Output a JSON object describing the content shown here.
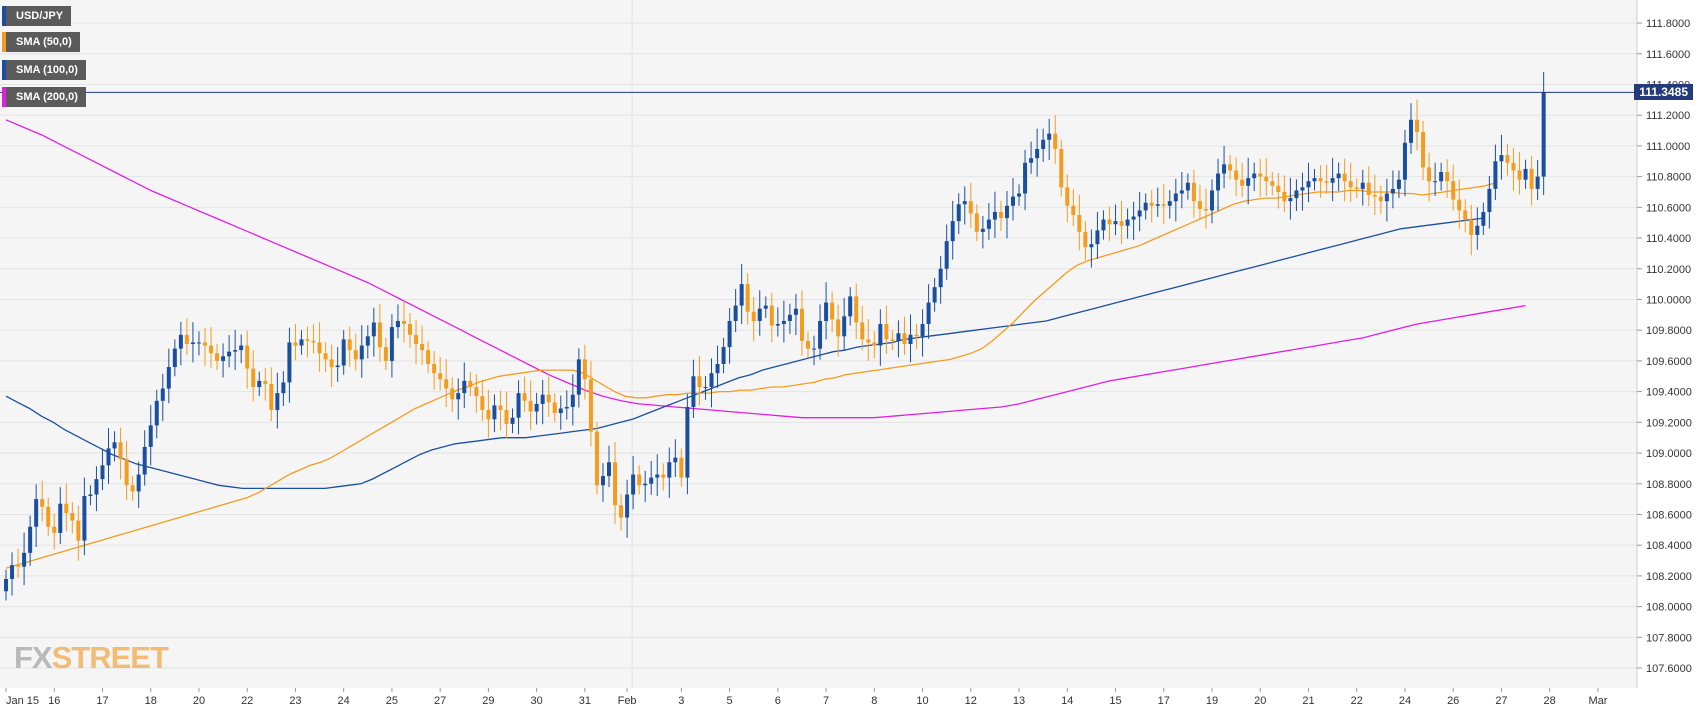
{
  "chart_data": {
    "type": "candlestick",
    "instrument": "USD/JPY",
    "legend": [
      {
        "label": "USD/JPY",
        "color": "#1a4fa0"
      },
      {
        "label": "SMA (50,0)",
        "color": "#f39c1f"
      },
      {
        "label": "SMA (100,0)",
        "color": "#1a4fa0"
      },
      {
        "label": "SMA (200,0)",
        "color": "#e020e0"
      }
    ],
    "current_price": "111.3485",
    "current_price_value": 111.3485,
    "y_ticks": [
      "111.8000",
      "111.6000",
      "111.4000",
      "111.2000",
      "111.0000",
      "110.8000",
      "110.6000",
      "110.4000",
      "110.2000",
      "110.0000",
      "109.8000",
      "109.6000",
      "109.4000",
      "109.2000",
      "109.0000",
      "108.8000",
      "108.6000",
      "108.4000",
      "108.2000",
      "108.0000",
      "107.8000",
      "107.6000"
    ],
    "y_tick_values": [
      111.8,
      111.6,
      111.4,
      111.2,
      111.0,
      110.8,
      110.6,
      110.4,
      110.2,
      110.0,
      109.8,
      109.6,
      109.4,
      109.2,
      109.0,
      108.8,
      108.6,
      108.4,
      108.2,
      108.0,
      107.8,
      107.6
    ],
    "ylim": [
      107.47,
      111.95
    ],
    "x_labels": [
      {
        "text": "Jan 15",
        "i": 0
      },
      {
        "text": "16",
        "i": 8
      },
      {
        "text": "17",
        "i": 16
      },
      {
        "text": "18",
        "i": 24
      },
      {
        "text": "20",
        "i": 32
      },
      {
        "text": "22",
        "i": 40
      },
      {
        "text": "23",
        "i": 48
      },
      {
        "text": "24",
        "i": 56
      },
      {
        "text": "25",
        "i": 64
      },
      {
        "text": "27",
        "i": 72
      },
      {
        "text": "29",
        "i": 80
      },
      {
        "text": "30",
        "i": 88
      },
      {
        "text": "31",
        "i": 96
      },
      {
        "text": "Feb",
        "i": 103
      },
      {
        "text": "3",
        "i": 112
      },
      {
        "text": "5",
        "i": 120
      },
      {
        "text": "6",
        "i": 128
      },
      {
        "text": "7",
        "i": 136
      },
      {
        "text": "8",
        "i": 144
      },
      {
        "text": "10",
        "i": 152
      },
      {
        "text": "12",
        "i": 160
      },
      {
        "text": "13",
        "i": 168
      },
      {
        "text": "14",
        "i": 176
      },
      {
        "text": "15",
        "i": 184
      },
      {
        "text": "17",
        "i": 192
      },
      {
        "text": "19",
        "i": 200
      },
      {
        "text": "20",
        "i": 208
      },
      {
        "text": "21",
        "i": 216
      },
      {
        "text": "22",
        "i": 224
      },
      {
        "text": "24",
        "i": 232
      },
      {
        "text": "26",
        "i": 240
      },
      {
        "text": "27",
        "i": 248
      },
      {
        "text": "28",
        "i": 256
      },
      {
        "text": "Mar",
        "i": 264
      }
    ],
    "candles_close": [
      108.18,
      108.27,
      108.26,
      108.35,
      108.52,
      108.7,
      108.65,
      108.52,
      108.48,
      108.67,
      108.61,
      108.56,
      108.43,
      108.72,
      108.73,
      108.83,
      108.92,
      109.03,
      109.07,
      108.96,
      108.79,
      108.75,
      108.86,
      109.04,
      109.18,
      109.34,
      109.42,
      109.56,
      109.68,
      109.77,
      109.71,
      109.72,
      109.72,
      109.7,
      109.65,
      109.6,
      109.63,
      109.66,
      109.67,
      109.7,
      109.55,
      109.43,
      109.47,
      109.45,
      109.28,
      109.39,
      109.46,
      109.72,
      109.7,
      109.74,
      109.73,
      109.72,
      109.65,
      109.61,
      109.56,
      109.57,
      109.74,
      109.67,
      109.61,
      109.7,
      109.76,
      109.85,
      109.69,
      109.6,
      109.82,
      109.86,
      109.84,
      109.77,
      109.71,
      109.67,
      109.58,
      109.52,
      109.48,
      109.42,
      109.35,
      109.39,
      109.47,
      109.43,
      109.37,
      109.28,
      109.22,
      109.31,
      109.28,
      109.19,
      109.23,
      109.39,
      109.34,
      109.27,
      109.32,
      109.38,
      109.33,
      109.26,
      109.29,
      109.3,
      109.38,
      109.61,
      109.48,
      109.14,
      108.79,
      108.85,
      108.94,
      108.66,
      108.58,
      108.73,
      108.86,
      108.79,
      108.8,
      108.84,
      108.86,
      108.84,
      108.94,
      108.97,
      108.84,
      109.3,
      109.5,
      109.43,
      109.43,
      109.52,
      109.58,
      109.69,
      109.86,
      109.96,
      110.1,
      109.92,
      109.86,
      109.94,
      109.96,
      109.83,
      109.84,
      109.86,
      109.9,
      109.94,
      109.73,
      109.68,
      109.68,
      109.86,
      109.98,
      109.87,
      109.76,
      109.89,
      110.02,
      109.85,
      109.74,
      109.72,
      109.7,
      109.84,
      109.74,
      109.73,
      109.78,
      109.71,
      109.77,
      109.76,
      109.84,
      109.98,
      110.08,
      110.2,
      110.38,
      110.51,
      110.62,
      110.64,
      110.56,
      110.44,
      110.46,
      110.52,
      110.57,
      110.53,
      110.61,
      110.67,
      110.69,
      110.89,
      110.92,
      110.98,
      111.04,
      111.08,
      110.98,
      110.73,
      110.61,
      110.55,
      110.44,
      110.34,
      110.36,
      110.45,
      110.52,
      110.49,
      110.51,
      110.48,
      110.52,
      110.54,
      110.58,
      110.63,
      110.61,
      110.62,
      110.61,
      110.64,
      110.69,
      110.71,
      110.76,
      110.64,
      110.59,
      110.58,
      110.71,
      110.82,
      110.88,
      110.84,
      110.78,
      110.74,
      110.79,
      110.82,
      110.8,
      110.77,
      110.74,
      110.7,
      110.64,
      110.66,
      110.71,
      110.73,
      110.77,
      110.79,
      110.77,
      110.76,
      110.79,
      110.82,
      110.77,
      110.73,
      110.72,
      110.76,
      110.68,
      110.67,
      110.64,
      110.69,
      110.72,
      110.78,
      111.02,
      111.17,
      111.09,
      110.86,
      110.77,
      110.77,
      110.83,
      110.77,
      110.65,
      110.58,
      110.52,
      110.42,
      110.48,
      110.57,
      110.72,
      110.9,
      110.94,
      110.89,
      110.84,
      110.78,
      110.85,
      110.72,
      110.8,
      111.35
    ],
    "sma50": [
      108.25,
      108.27,
      108.29,
      108.31,
      108.33,
      108.35,
      108.37,
      108.39,
      108.41,
      108.43,
      108.45,
      108.47,
      108.49,
      108.51,
      108.53,
      108.55,
      108.57,
      108.59,
      108.61,
      108.63,
      108.65,
      108.67,
      108.69,
      108.71,
      108.74,
      108.78,
      108.82,
      108.86,
      108.89,
      108.92,
      108.94,
      108.97,
      109.01,
      109.05,
      109.09,
      109.13,
      109.17,
      109.21,
      109.25,
      109.29,
      109.32,
      109.35,
      109.38,
      109.41,
      109.43,
      109.46,
      109.48,
      109.5,
      109.51,
      109.52,
      109.53,
      109.54,
      109.54,
      109.54,
      109.54,
      109.52,
      109.48,
      109.44,
      109.4,
      109.37,
      109.36,
      109.36,
      109.37,
      109.38,
      109.38,
      109.39,
      109.39,
      109.39,
      109.4,
      109.4,
      109.41,
      109.41,
      109.42,
      109.43,
      109.43,
      109.44,
      109.45,
      109.46,
      109.48,
      109.49,
      109.51,
      109.52,
      109.53,
      109.54,
      109.55,
      109.56,
      109.57,
      109.58,
      109.59,
      109.6,
      109.61,
      109.63,
      109.65,
      109.68,
      109.73,
      109.79,
      109.85,
      109.92,
      109.99,
      110.05,
      110.11,
      110.17,
      110.22,
      110.25,
      110.27,
      110.29,
      110.31,
      110.33,
      110.35,
      110.38,
      110.41,
      110.44,
      110.47,
      110.5,
      110.53,
      110.56,
      110.59,
      110.62,
      110.64,
      110.65,
      110.66,
      110.66,
      110.67,
      110.68,
      110.69,
      110.7,
      110.7,
      110.7,
      110.71,
      110.71,
      110.7,
      110.7,
      110.7,
      110.69,
      110.69,
      110.68,
      110.69,
      110.7,
      110.71,
      110.72,
      110.73,
      110.74,
      110.76
    ],
    "sma100": [
      109.37,
      109.33,
      109.29,
      109.24,
      109.2,
      109.15,
      109.11,
      109.07,
      109.03,
      108.99,
      108.96,
      108.93,
      108.91,
      108.89,
      108.87,
      108.85,
      108.83,
      108.81,
      108.79,
      108.78,
      108.77,
      108.77,
      108.77,
      108.77,
      108.77,
      108.77,
      108.77,
      108.77,
      108.78,
      108.79,
      108.8,
      108.83,
      108.87,
      108.91,
      108.95,
      108.99,
      109.02,
      109.04,
      109.06,
      109.07,
      109.08,
      109.09,
      109.1,
      109.1,
      109.1,
      109.11,
      109.12,
      109.13,
      109.14,
      109.15,
      109.16,
      109.18,
      109.2,
      109.22,
      109.25,
      109.28,
      109.31,
      109.34,
      109.37,
      109.4,
      109.43,
      109.46,
      109.49,
      109.51,
      109.54,
      109.56,
      109.58,
      109.6,
      109.62,
      109.64,
      109.66,
      109.67,
      109.69,
      109.7,
      109.71,
      109.72,
      109.74,
      109.75,
      109.76,
      109.77,
      109.78,
      109.79,
      109.8,
      109.81,
      109.82,
      109.83,
      109.84,
      109.85,
      109.86,
      109.88,
      109.9,
      109.92,
      109.94,
      109.96,
      109.98,
      110.0,
      110.02,
      110.04,
      110.06,
      110.08,
      110.1,
      110.12,
      110.14,
      110.16,
      110.18,
      110.2,
      110.22,
      110.24,
      110.26,
      110.28,
      110.3,
      110.32,
      110.34,
      110.36,
      110.38,
      110.4,
      110.42,
      110.44,
      110.46,
      110.47,
      110.48,
      110.49,
      110.5,
      110.51,
      110.52,
      110.53
    ],
    "sma200": [
      111.17,
      111.12,
      111.07,
      111.01,
      110.95,
      110.89,
      110.83,
      110.77,
      110.71,
      110.66,
      110.61,
      110.56,
      110.51,
      110.46,
      110.41,
      110.36,
      110.31,
      110.26,
      110.21,
      110.16,
      110.11,
      110.05,
      109.99,
      109.93,
      109.87,
      109.81,
      109.75,
      109.69,
      109.63,
      109.57,
      109.51,
      109.46,
      109.41,
      109.37,
      109.34,
      109.32,
      109.31,
      109.3,
      109.29,
      109.28,
      109.27,
      109.26,
      109.25,
      109.24,
      109.23,
      109.23,
      109.23,
      109.23,
      109.23,
      109.24,
      109.25,
      109.26,
      109.27,
      109.28,
      109.29,
      109.3,
      109.32,
      109.35,
      109.38,
      109.41,
      109.44,
      109.47,
      109.49,
      109.51,
      109.53,
      109.55,
      109.57,
      109.59,
      109.61,
      109.63,
      109.65,
      109.67,
      109.69,
      109.71,
      109.73,
      109.75,
      109.78,
      109.81,
      109.84,
      109.86,
      109.88,
      109.9,
      109.92,
      109.94,
      109.96
    ]
  },
  "watermark": {
    "fx": "FX",
    "street": "STREET"
  }
}
